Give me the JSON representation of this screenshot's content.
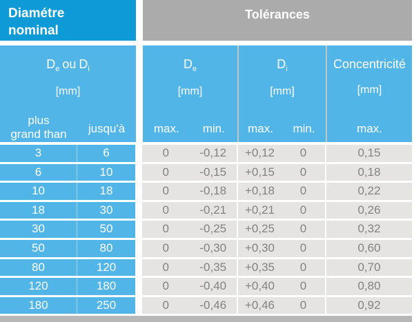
{
  "header": {
    "left_title": "Diamétre\nnominal",
    "right_title": "Tolérances"
  },
  "subheader": {
    "left": {
      "line1": {
        "d1": "D",
        "s1": "e",
        "ou": "ou",
        "d2": "D",
        "s2": "i"
      },
      "unit": "[mm]",
      "col1_label": "plus\ngrand than",
      "col2_label": "jusqu'à"
    },
    "de": {
      "label": "D",
      "sub": "e",
      "unit": "[mm]",
      "max": "max.",
      "min": "min."
    },
    "di": {
      "label": "D",
      "sub": "i",
      "unit": "[mm]",
      "max": "max.",
      "min": "min."
    },
    "conc": {
      "label": "Concentricité",
      "unit": "[mm]",
      "max": "max."
    }
  },
  "rows": [
    {
      "from": "3",
      "to": "6",
      "de_max": "0",
      "de_min": "-0,12",
      "di_max": "+0,12",
      "di_min": "0",
      "conc": "0,15"
    },
    {
      "from": "6",
      "to": "10",
      "de_max": "0",
      "de_min": "-0,15",
      "di_max": "+0,15",
      "di_min": "0",
      "conc": "0,18"
    },
    {
      "from": "10",
      "to": "18",
      "de_max": "0",
      "de_min": "-0,18",
      "di_max": "+0,18",
      "di_min": "0",
      "conc": "0,22"
    },
    {
      "from": "18",
      "to": "30",
      "de_max": "0",
      "de_min": "-0,21",
      "di_max": "+0,21",
      "di_min": "0",
      "conc": "0,26"
    },
    {
      "from": "30",
      "to": "50",
      "de_max": "0",
      "de_min": "-0,25",
      "di_max": "+0,25",
      "di_min": "0",
      "conc": "0,32"
    },
    {
      "from": "50",
      "to": "80",
      "de_max": "0",
      "de_min": "-0,30",
      "di_max": "+0,30",
      "di_min": "0",
      "conc": "0,60"
    },
    {
      "from": "80",
      "to": "120",
      "de_max": "0",
      "de_min": "-0,35",
      "di_max": "+0,35",
      "di_min": "0",
      "conc": "0,70"
    },
    {
      "from": "120",
      "to": "180",
      "de_max": "0",
      "de_min": "-0,40",
      "di_max": "+0,40",
      "di_min": "0",
      "conc": "0,80"
    },
    {
      "from": "180",
      "to": "250",
      "de_max": "0",
      "de_min": "-0,46",
      "di_max": "+0,46",
      "di_min": "0",
      "conc": "0,92"
    }
  ],
  "colors": {
    "accent_dark_blue": "#0e9ad7",
    "accent_light_blue": "#52b5e8",
    "header_gray": "#ababab",
    "row_gray": "#e5e4e2",
    "footer_gray": "#b7b7b7",
    "data_text": "#828282"
  }
}
